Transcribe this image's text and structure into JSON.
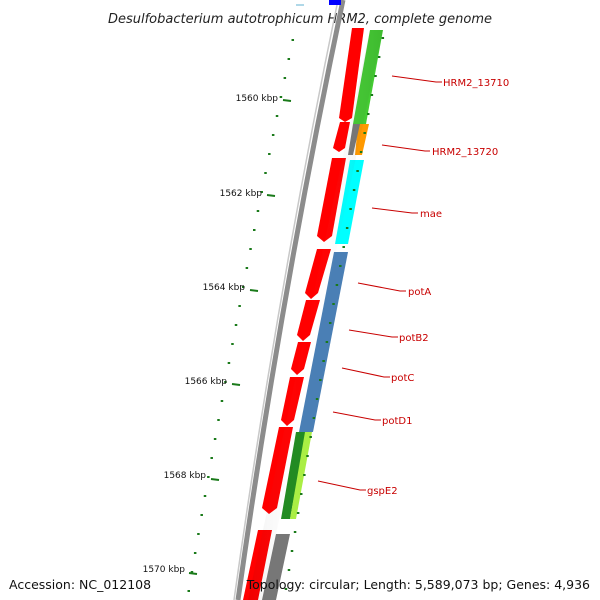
{
  "title": "Desulfobacterium autotrophicum HRM2, complete genome",
  "scale_ticks": [
    {
      "label": "1560 kbp"
    },
    {
      "label": "1562 kbp"
    },
    {
      "label": "1564 kbp"
    },
    {
      "label": "1566 kbp"
    },
    {
      "label": "1568 kbp"
    },
    {
      "label": "1570 kbp"
    }
  ],
  "gene_labels": [
    {
      "text": "HRM2_13710"
    },
    {
      "text": "HRM2_13720"
    },
    {
      "text": "mae"
    },
    {
      "text": "potA"
    },
    {
      "text": "potB2"
    },
    {
      "text": "potC"
    },
    {
      "text": "potD1"
    },
    {
      "text": "gspE2"
    }
  ],
  "footer": {
    "accession": "Accession: NC_012108",
    "topology": "Topology: circular; Length: 5,589,073 bp; Genes: 4,936"
  },
  "colors": {
    "forward_strand": "#ff0000",
    "backbone": "#8c8c8c",
    "tick": "#1a7a1a",
    "label": "#c80000",
    "cog_green": "#44cc33",
    "cog_orange": "#ff9900",
    "cog_cyan": "#00ffff",
    "cog_steelblue": "#4a7fb5",
    "cog_darkgreen": "#228b22",
    "cog_lime": "#aaee44",
    "cog_gray": "#777777",
    "cog_blue": "#0000ff"
  }
}
